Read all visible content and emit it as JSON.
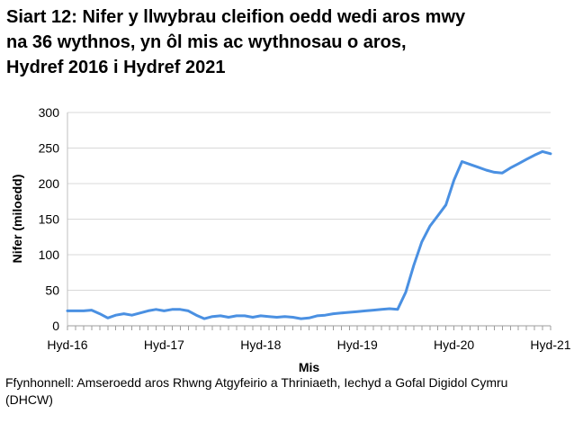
{
  "header": {
    "title_lines": [
      "Siart 12: Nifer y llwybrau cleifion oedd wedi aros mwy",
      "na 36 wythnos, yn ôl mis ac wythnosau o aros,",
      "Hydref 2016 i Hydref 2021"
    ]
  },
  "footer": {
    "line1": "Ffynhonnell: Amseroedd aros Rhwng Atgyfeirio a Thriniaeth, Iechyd a Gofal Digidol Cymru",
    "line2": "(DHCW)"
  },
  "chart_data": {
    "type": "line",
    "title": "Siart 12: Nifer y llwybrau cleifion oedd wedi aros mwy na 36 wythnos, yn ôl mis ac wythnosau o aros, Hydref 2016 i Hydref 2021",
    "xlabel": "Mis",
    "ylabel": "Nifer (miloedd)",
    "ylim": [
      0,
      300
    ],
    "yticks": [
      0,
      50,
      100,
      150,
      200,
      250,
      300
    ],
    "x_unit": "monthly",
    "x_start": "Hydref 2016",
    "x_end": "Hydref 2021",
    "x_tick_labels": [
      "Hyd-16",
      "Hyd-17",
      "Hyd-18",
      "Hyd-19",
      "Hyd-20",
      "Hyd-21"
    ],
    "x_tick_positions": [
      0,
      12,
      24,
      36,
      48,
      60
    ],
    "grid": "horizontal",
    "legend": "none",
    "line_color": "#4a90e2",
    "series": [
      {
        "name": "Nifer (miloedd)",
        "values": [
          21,
          21,
          21,
          22,
          17,
          11,
          15,
          17,
          15,
          18,
          21,
          23,
          21,
          23,
          23,
          21,
          15,
          10,
          13,
          14,
          12,
          14,
          14,
          12,
          14,
          13,
          12,
          13,
          12,
          10,
          11,
          14,
          15,
          17,
          18,
          19,
          20,
          21,
          22,
          23,
          24,
          23,
          47,
          85,
          118,
          140,
          155,
          170,
          205,
          231,
          227,
          223,
          219,
          216,
          215,
          222,
          228,
          234,
          240,
          245,
          242
        ]
      }
    ]
  }
}
